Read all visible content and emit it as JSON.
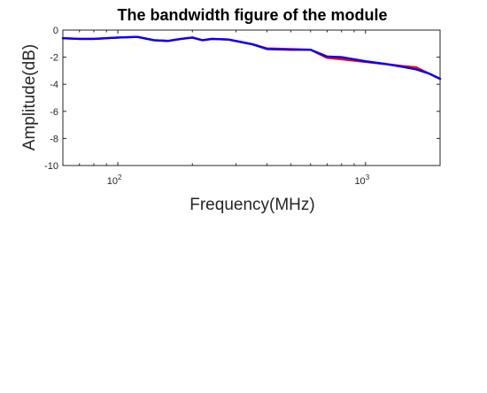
{
  "chart_data": {
    "type": "line",
    "title": "The bandwidth figure of the module",
    "xlabel": "Frequency(MHz)",
    "ylabel": "Amplitude(dB)",
    "x_scale": "log",
    "xlim": [
      60,
      2000
    ],
    "ylim": [
      -10,
      0
    ],
    "grid": false,
    "x_ticks": [
      {
        "value": 100,
        "base": "10",
        "exp": "2"
      },
      {
        "value": 1000,
        "base": "10",
        "exp": "3"
      }
    ],
    "y_ticks": [
      0,
      -2,
      -4,
      -6,
      -8,
      -10
    ],
    "series": [
      {
        "color": "#ff0000",
        "x": [
          60,
          70,
          80,
          90,
          100,
          120,
          140,
          160,
          180,
          200,
          220,
          240,
          280,
          350,
          400,
          500,
          600,
          700,
          800,
          1000,
          1200,
          1400,
          1600,
          1800,
          2000
        ],
        "y": [
          -0.6,
          -0.65,
          -0.65,
          -0.6,
          -0.55,
          -0.5,
          -0.75,
          -0.8,
          -0.65,
          -0.55,
          -0.75,
          -0.65,
          -0.7,
          -1.05,
          -1.35,
          -1.4,
          -1.45,
          -2.05,
          -2.15,
          -2.35,
          -2.5,
          -2.65,
          -2.75,
          -3.2,
          -3.6
        ]
      },
      {
        "color": "#0000ff",
        "x": [
          60,
          70,
          80,
          90,
          100,
          120,
          140,
          160,
          180,
          200,
          220,
          240,
          280,
          350,
          400,
          500,
          600,
          700,
          800,
          1000,
          1200,
          1400,
          1600,
          1800,
          2000
        ],
        "y": [
          -0.6,
          -0.65,
          -0.65,
          -0.6,
          -0.55,
          -0.5,
          -0.75,
          -0.8,
          -0.65,
          -0.55,
          -0.75,
          -0.65,
          -0.7,
          -1.05,
          -1.4,
          -1.45,
          -1.45,
          -1.95,
          -2.0,
          -2.3,
          -2.5,
          -2.7,
          -2.9,
          -3.2,
          -3.6
        ]
      }
    ]
  }
}
